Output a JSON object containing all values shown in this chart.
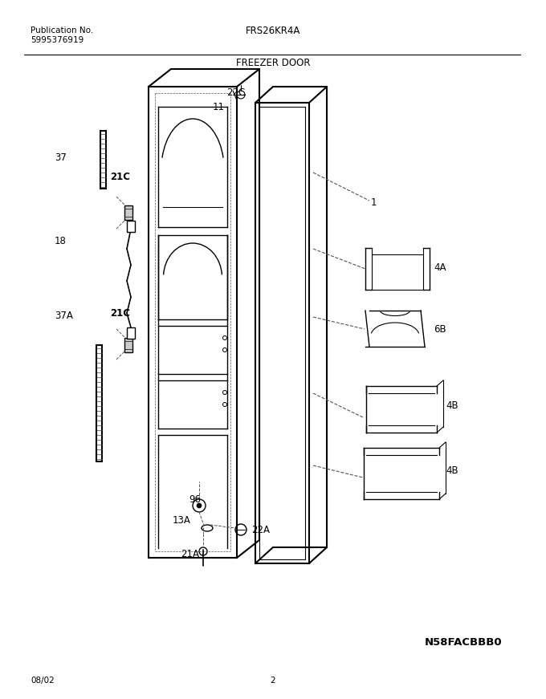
{
  "title_center": "FRS26KR4A",
  "pub_no_label": "Publication No.",
  "pub_no": "5995376919",
  "section_title": "FREEZER DOOR",
  "diagram_code": "N58FACBBB0",
  "date": "08/02",
  "page": "2",
  "bg_color": "#ffffff",
  "text_color": "#000000",
  "line_color": "#000000"
}
